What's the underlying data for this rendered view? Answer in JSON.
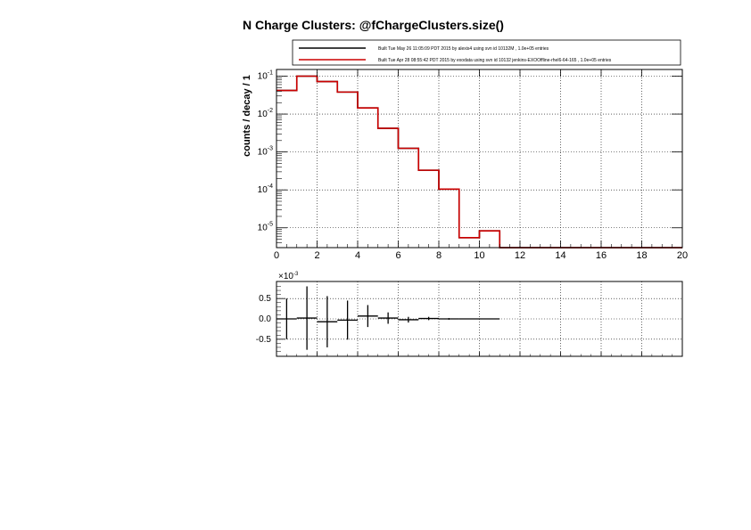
{
  "chart_data": [
    {
      "type": "line",
      "step": true,
      "title": "N Charge Clusters: @fChargeClusters.size()",
      "xlabel": "",
      "ylabel": "counts / decay / 1",
      "xlim": [
        0,
        20
      ],
      "ylim": [
        3e-06,
        0.15
      ],
      "ylog": true,
      "grid": true,
      "legend_position": "top",
      "x_ticks": [
        0,
        2,
        4,
        6,
        8,
        10,
        12,
        14,
        16,
        18,
        20
      ],
      "y_ticks": [
        {
          "value": 1e-05,
          "base": "10",
          "exp": "-5"
        },
        {
          "value": 0.0001,
          "base": "10",
          "exp": "-4"
        },
        {
          "value": 0.001,
          "base": "10",
          "exp": "-3"
        },
        {
          "value": 0.01,
          "base": "10",
          "exp": "-2"
        },
        {
          "value": 0.1,
          "base": "10",
          "exp": "-1"
        }
      ],
      "bin_edges": [
        0,
        1,
        2,
        3,
        4,
        5,
        6,
        7,
        8,
        9,
        10,
        11,
        12,
        13,
        14,
        15,
        16,
        17,
        18,
        19,
        20
      ],
      "series": [
        {
          "name": "Built Tue May 26 11:05:09 PDT 2015 by alexis4 using svn id 10132M , 1.0e+05 entries",
          "color": "#000000",
          "values": [
            0.042,
            0.1,
            0.072,
            0.038,
            0.0145,
            0.0042,
            0.00125,
            0.00033,
            0.000105,
            5.5e-06,
            8.3e-06,
            0,
            0,
            0,
            0,
            0,
            0,
            0,
            0,
            0
          ]
        },
        {
          "name": "Built Tue Apr 28 08:55:42 PDT 2015 by exodata using svn id 10132 jenkins-EXOOffline-rhel6-64-165 , 1.0e+05 entries",
          "color": "#cc0000",
          "values": [
            0.042,
            0.1,
            0.072,
            0.038,
            0.0145,
            0.0042,
            0.00125,
            0.00033,
            0.000105,
            5.5e-06,
            8.3e-06,
            0,
            0,
            0,
            0,
            0,
            0,
            0,
            0,
            0
          ]
        }
      ]
    },
    {
      "type": "scatter",
      "error_bars": true,
      "title": "",
      "xlabel": "",
      "ylabel": "",
      "xlim": [
        0,
        20
      ],
      "ylim": [
        -0.92,
        0.92
      ],
      "scale_label": "×10",
      "scale_exp": "-3",
      "grid": true,
      "y_ticks": [
        {
          "value": 0.5,
          "label": "0.5"
        },
        {
          "value": 0.0,
          "label": "0.0"
        },
        {
          "value": -0.5,
          "label": "-0.5"
        }
      ],
      "points": [
        {
          "x": 0.5,
          "y": 0.0,
          "err": 0.5
        },
        {
          "x": 1.5,
          "y": 0.02,
          "err": 0.78
        },
        {
          "x": 2.5,
          "y": -0.07,
          "err": 0.63
        },
        {
          "x": 3.5,
          "y": -0.03,
          "err": 0.48
        },
        {
          "x": 4.5,
          "y": 0.07,
          "err": 0.27
        },
        {
          "x": 5.5,
          "y": 0.02,
          "err": 0.14
        },
        {
          "x": 6.5,
          "y": -0.02,
          "err": 0.07
        },
        {
          "x": 7.5,
          "y": 0.01,
          "err": 0.04
        },
        {
          "x": 8.5,
          "y": 0.0,
          "err": 0.02
        },
        {
          "x": 9.5,
          "y": 0.0,
          "err": 0.005
        },
        {
          "x": 10.5,
          "y": 0.0,
          "err": 0.005
        }
      ]
    }
  ]
}
